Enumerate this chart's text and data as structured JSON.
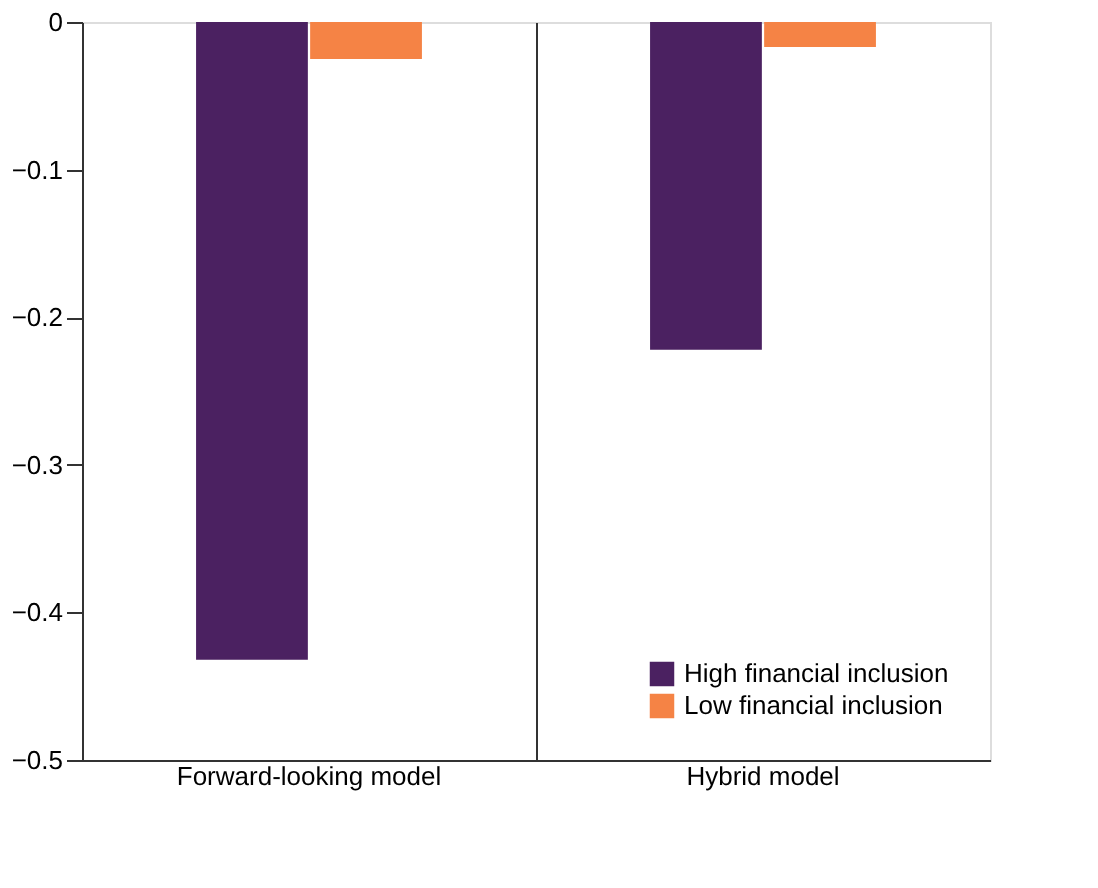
{
  "chart_data": {
    "type": "bar",
    "categories": [
      "Forward-looking model",
      "Hybrid model"
    ],
    "series": [
      {
        "name": "High financial inclusion",
        "color": "#4b2161",
        "values": [
          -0.432,
          -0.222
        ]
      },
      {
        "name": "Low financial inclusion",
        "color": "#f58345",
        "values": [
          -0.025,
          -0.017
        ]
      }
    ],
    "ylim": [
      -0.5,
      0
    ],
    "yticks": [
      0,
      {
        "value": -0.1,
        "label": "−0.1"
      },
      {
        "value": -0.2,
        "label": "−0.2"
      },
      {
        "value": -0.3,
        "label": "−0.3"
      },
      {
        "value": -0.4,
        "label": "−0.4"
      },
      {
        "value": -0.5,
        "label": "−0.5"
      }
    ],
    "grid": "x",
    "legend": "bottom right"
  }
}
